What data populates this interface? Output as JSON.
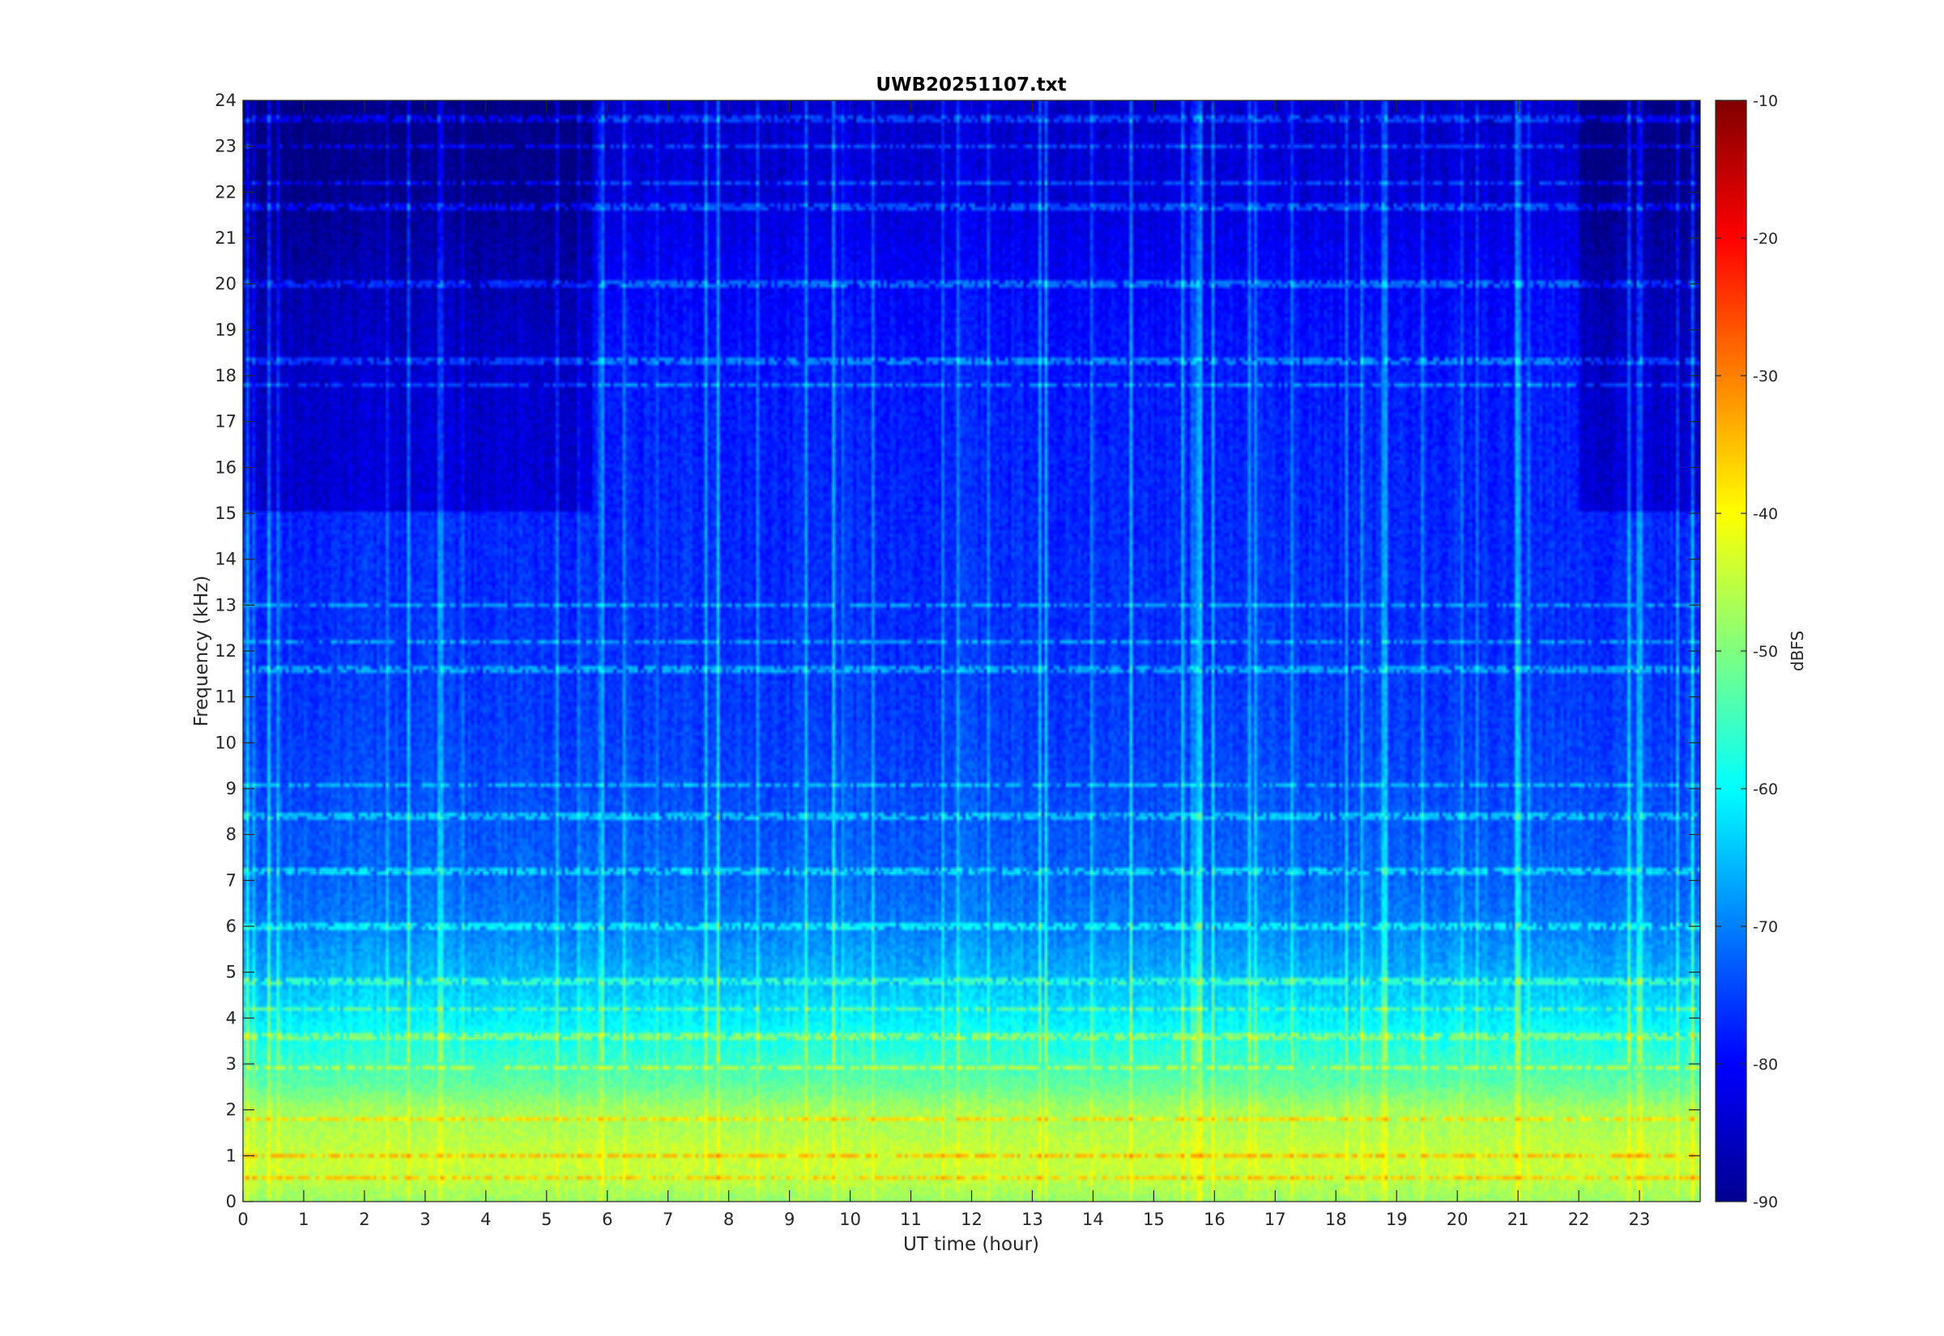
{
  "chart_data": {
    "type": "heatmap",
    "title": "UWB20251107.txt",
    "xlabel": "UT time (hour)",
    "ylabel": "Frequency (kHz)",
    "colorbar_label": "dBFS",
    "colormap": "jet",
    "xlim": [
      0,
      24
    ],
    "ylim": [
      0,
      24
    ],
    "clim": [
      -90,
      -10
    ],
    "x_ticks": [
      "0",
      "1",
      "2",
      "3",
      "4",
      "5",
      "6",
      "7",
      "8",
      "9",
      "10",
      "11",
      "12",
      "13",
      "14",
      "15",
      "16",
      "17",
      "18",
      "19",
      "20",
      "21",
      "22",
      "23"
    ],
    "y_ticks": [
      "0",
      "1",
      "2",
      "3",
      "4",
      "5",
      "6",
      "7",
      "8",
      "9",
      "10",
      "11",
      "12",
      "13",
      "14",
      "15",
      "16",
      "17",
      "18",
      "19",
      "20",
      "21",
      "22",
      "23",
      "24"
    ],
    "colorbar_ticks": [
      "-10",
      "-20",
      "-30",
      "-40",
      "-50",
      "-60",
      "-70",
      "-80",
      "-90"
    ],
    "level_profile_khz_dbfs": [
      [
        0,
        -48
      ],
      [
        0.5,
        -45
      ],
      [
        1.0,
        -44
      ],
      [
        1.5,
        -46
      ],
      [
        2.0,
        -47
      ],
      [
        2.5,
        -52
      ],
      [
        3.0,
        -55
      ],
      [
        3.5,
        -58
      ],
      [
        4.0,
        -61
      ],
      [
        5.0,
        -66
      ],
      [
        6.0,
        -70
      ],
      [
        7.0,
        -72
      ],
      [
        8.0,
        -73
      ],
      [
        9.0,
        -74
      ],
      [
        10.0,
        -75
      ],
      [
        12.0,
        -76
      ],
      [
        15.0,
        -77
      ],
      [
        18.0,
        -78
      ],
      [
        20.0,
        -80
      ],
      [
        22.0,
        -83
      ],
      [
        24.0,
        -84
      ]
    ],
    "tone_lines_khz": [
      0.5,
      1.0,
      1.8,
      2.9,
      3.6,
      4.2,
      4.8,
      6.0,
      7.2,
      8.4,
      9.1,
      11.6,
      12.2,
      13.0,
      17.8,
      18.3,
      20.0,
      21.7,
      22.2,
      23.0,
      23.6
    ],
    "quiet_band_hours": [
      [
        0,
        5.7
      ],
      [
        22,
        24
      ]
    ]
  },
  "colors": {
    "axis": "#262626",
    "grid": "none"
  }
}
